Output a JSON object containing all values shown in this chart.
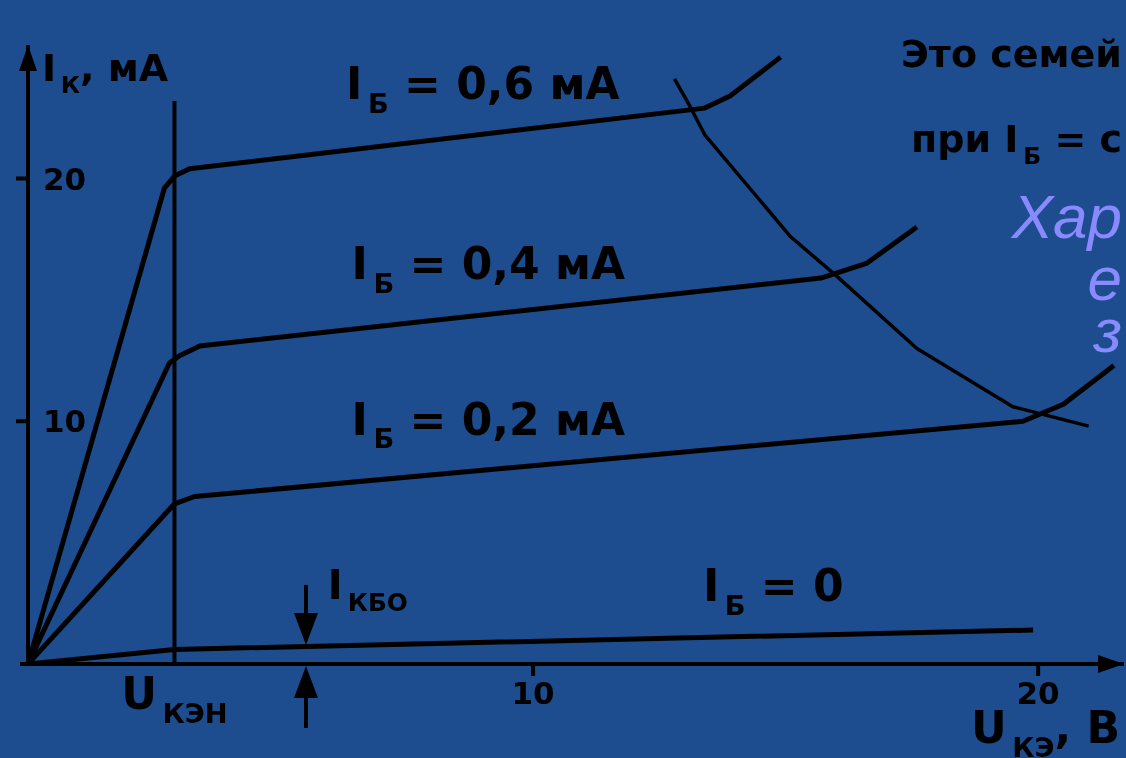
{
  "chart_data": {
    "type": "line",
    "xlabel": "U$_{КЭ}$, В",
    "ylabel": "I$_{К}$, мА",
    "series": [
      {
        "name": "I$_{Б}$ = 0,6 мА",
        "color": "#000000",
        "x": [
          0,
          2.7,
          2.9,
          3.2,
          13.4,
          13.9,
          14.9
        ],
        "values": [
          0,
          19.6,
          20.1,
          20.4,
          22.9,
          23.4,
          25.0
        ]
      },
      {
        "name": "I$_{Б}$ = 0,4 мА",
        "color": "#000000",
        "x": [
          0,
          2.8,
          3.0,
          3.4,
          15.7,
          16.6,
          17.6
        ],
        "values": [
          0,
          12.4,
          12.7,
          13.1,
          15.9,
          16.5,
          18.0
        ]
      },
      {
        "name": "I$_{Б}$ = 0,2 мА",
        "color": "#000000",
        "x": [
          0,
          2.9,
          3.3,
          19.7,
          20.5,
          21.5
        ],
        "values": [
          0,
          6.6,
          6.9,
          10.0,
          10.7,
          12.3
        ]
      },
      {
        "name": "I$_{Б}$ = 0",
        "color": "#000000",
        "x": [
          0,
          2.9,
          19.9
        ],
        "values": [
          0,
          0.6,
          1.4
        ]
      },
      {
        "color": "#000000",
        "x": [
          12.8,
          13.1,
          13.4,
          15.1,
          16.0,
          17.6,
          19.5,
          21.0
        ],
        "values": [
          24.1,
          23.0,
          21.8,
          17.6,
          16.0,
          13.0,
          10.6,
          9.8
        ]
      }
    ],
    "xlim": [
      0,
      21.7
    ],
    "ylim": [
      0,
      25.5
    ],
    "xticks": [
      10,
      20
    ],
    "yticks": [
      10,
      20
    ],
    "ref_lines": [
      {
        "axis": "x",
        "value": 2.9,
        "label": "U$_{КЭН}$",
        "color": "#000000"
      }
    ],
    "annotations": [
      "Это семей",
      "при I$_{Б}$ = с",
      "Хар",
      "е",
      "з",
      {
        "text": "I$_{КБО}$",
        "x": 5.5,
        "y": 0.7
      }
    ],
    "line_style": "solid"
  }
}
